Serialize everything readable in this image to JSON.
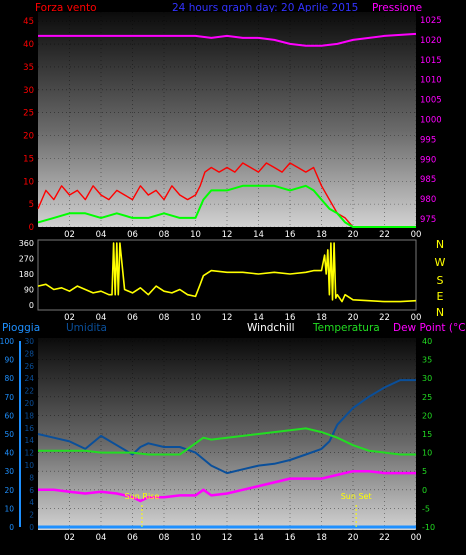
{
  "header": {
    "left_label": "Forza vento",
    "title": "24 hours graph day:  20 Aprile 2015",
    "right_label": "Pressione"
  },
  "legend": {
    "pioggia": "Pioggia",
    "umidita": "Umidita",
    "windchill": "Windchill",
    "temperatura": "Temperatura",
    "dewpoint": "Dew Point (°C)"
  },
  "events": {
    "sunrise": "Sun Rise",
    "sunset": "Sun Set"
  },
  "colors": {
    "wind": "#ff0000",
    "wind_avg": "#00ff00",
    "pressure": "#ff00ff",
    "direction": "#ffff00",
    "humidity": "#0a4f9a",
    "temperature": "#22dd22",
    "dewpoint": "#ff00ff",
    "rain": "#1e90ff",
    "windchill": "#ffffff",
    "title": "#3333ff",
    "axis_left": "#ff0000",
    "axis_right": "#ff00ff",
    "compass": "#ffff00",
    "events": "#ffff00"
  },
  "chart_data": [
    {
      "type": "line",
      "name": "wind_pressure",
      "x_ticks": [
        "02",
        "04",
        "06",
        "08",
        "10",
        "12",
        "14",
        "16",
        "18",
        "20",
        "22",
        "00"
      ],
      "xlim": [
        0,
        24
      ],
      "y_left": {
        "ticks": [
          0,
          5,
          10,
          15,
          20,
          25,
          30,
          35,
          40,
          45
        ],
        "ylim": [
          0,
          47
        ]
      },
      "y_right": {
        "ticks": [
          975,
          980,
          985,
          990,
          995,
          1000,
          1005,
          1010,
          1015,
          1020,
          1025
        ],
        "ylim": [
          973,
          1027
        ]
      },
      "series": [
        {
          "name": "Forza vento",
          "axis": "left",
          "x": [
            0,
            0.5,
            1,
            1.5,
            2,
            2.5,
            3,
            3.5,
            4,
            4.5,
            5,
            5.5,
            6,
            6.5,
            7,
            7.5,
            8,
            8.5,
            9,
            9.5,
            10,
            10.3,
            10.6,
            11,
            11.5,
            12,
            12.5,
            13,
            13.5,
            14,
            14.5,
            15,
            15.5,
            16,
            16.5,
            17,
            17.5,
            18,
            18.5,
            19,
            19.5,
            20,
            20.5,
            21,
            22,
            23,
            24
          ],
          "y": [
            4,
            8,
            6,
            9,
            7,
            8,
            6,
            9,
            7,
            6,
            8,
            7,
            6,
            9,
            7,
            8,
            6,
            9,
            7,
            6,
            7,
            9,
            12,
            13,
            12,
            13,
            12,
            14,
            13,
            12,
            14,
            13,
            12,
            14,
            13,
            12,
            13,
            9,
            6,
            3,
            2,
            0,
            0,
            0,
            0,
            0,
            0
          ]
        },
        {
          "name": "Forza vento media",
          "axis": "left",
          "x": [
            0,
            1,
            2,
            3,
            4,
            5,
            6,
            7,
            8,
            9,
            10,
            10.5,
            11,
            12,
            13,
            14,
            15,
            16,
            17,
            17.5,
            18,
            18.5,
            19,
            19.5,
            20,
            21,
            22,
            23,
            24
          ],
          "y": [
            1,
            2,
            3,
            3,
            2,
            3,
            2,
            2,
            3,
            2,
            2,
            6,
            8,
            8,
            9,
            9,
            9,
            8,
            9,
            8,
            6,
            4,
            3,
            1,
            0,
            0,
            0,
            0,
            0
          ]
        },
        {
          "name": "Pressione",
          "axis": "right",
          "x": [
            0,
            2,
            4,
            6,
            8,
            10,
            11,
            12,
            13,
            14,
            15,
            16,
            17,
            18,
            19,
            20,
            22,
            24
          ],
          "y": [
            1021,
            1021,
            1021,
            1021,
            1021,
            1021,
            1020.5,
            1021,
            1020.5,
            1020.5,
            1020,
            1019,
            1018.5,
            1018.5,
            1019,
            1020,
            1021,
            1021.5
          ]
        }
      ]
    },
    {
      "type": "line",
      "name": "wind_direction",
      "x_ticks": [
        "02",
        "04",
        "06",
        "08",
        "10",
        "12",
        "14",
        "16",
        "18",
        "20",
        "22",
        "00"
      ],
      "xlim": [
        0,
        24
      ],
      "y_left": {
        "ticks": [
          0,
          90,
          180,
          270,
          360
        ],
        "ylim": [
          0,
          360
        ]
      },
      "y_right": {
        "ticks": [
          "N",
          "E",
          "S",
          "W",
          "N"
        ]
      },
      "series": [
        {
          "name": "Direzione vento",
          "x": [
            0,
            0.5,
            1,
            1.5,
            2,
            2.5,
            3,
            3.5,
            4,
            4.5,
            4.7,
            4.8,
            4.9,
            5.0,
            5.1,
            5.2,
            5.5,
            6,
            6.5,
            7,
            7.5,
            8,
            8.5,
            9,
            9.5,
            10,
            10.3,
            10.5,
            11,
            12,
            13,
            14,
            15,
            16,
            17,
            17.5,
            18,
            18.2,
            18.3,
            18.4,
            18.5,
            18.6,
            18.7,
            18.8,
            18.9,
            19,
            19.3,
            19.5,
            20,
            21,
            22,
            23,
            24
          ],
          "y": [
            110,
            120,
            90,
            100,
            80,
            110,
            90,
            70,
            80,
            60,
            60,
            360,
            60,
            360,
            60,
            360,
            90,
            70,
            100,
            60,
            110,
            80,
            70,
            90,
            60,
            50,
            120,
            170,
            200,
            190,
            190,
            180,
            190,
            180,
            190,
            200,
            200,
            290,
            180,
            320,
            60,
            360,
            30,
            360,
            40,
            60,
            20,
            60,
            30,
            25,
            20,
            20,
            25
          ]
        }
      ]
    },
    {
      "type": "line",
      "name": "temp_humidity",
      "x_ticks": [
        "02",
        "04",
        "06",
        "08",
        "10",
        "12",
        "14",
        "16",
        "18",
        "20",
        "22",
        "00"
      ],
      "xlim": [
        0,
        24
      ],
      "y_left_outer": {
        "ticks": [
          0,
          10,
          20,
          30,
          40,
          50,
          60,
          70,
          80,
          90,
          100
        ],
        "ylim": [
          0,
          100
        ]
      },
      "y_left_inner": {
        "ticks": [
          0,
          2,
          4,
          6,
          8,
          10,
          12,
          14,
          16,
          18,
          20,
          22,
          24,
          26,
          28,
          30
        ],
        "ylim": [
          0,
          30
        ]
      },
      "y_right": {
        "ticks": [
          -10,
          -5,
          0,
          5,
          10,
          15,
          20,
          25,
          30,
          35,
          40
        ],
        "ylim": [
          -10,
          40
        ]
      },
      "series": [
        {
          "name": "Umidita",
          "axis": "left_outer",
          "x": [
            0,
            1,
            2,
            3,
            4,
            5,
            6,
            6.5,
            7,
            8,
            9,
            10,
            11,
            12,
            13,
            14,
            15,
            16,
            17,
            18,
            18.5,
            19,
            20,
            21,
            22,
            23,
            24
          ],
          "y": [
            50,
            48,
            46,
            42,
            49,
            44,
            39,
            43,
            45,
            43,
            43,
            40,
            33,
            29,
            31,
            33,
            34,
            36,
            39,
            42,
            46,
            55,
            64,
            70,
            75,
            79,
            79
          ]
        },
        {
          "name": "Temperatura",
          "axis": "right",
          "x": [
            0,
            1,
            2,
            3,
            4,
            5,
            6,
            7,
            8,
            9,
            10,
            10.5,
            11,
            12,
            13,
            14,
            15,
            16,
            17,
            18,
            19,
            20,
            21,
            22,
            23,
            24
          ],
          "y": [
            10.5,
            10.5,
            10.5,
            10.5,
            10,
            10,
            10,
            9.5,
            9.5,
            9.5,
            12.5,
            14,
            13.5,
            14,
            14.5,
            15,
            15.5,
            16,
            16.5,
            15.5,
            14,
            12,
            10.5,
            10,
            9.5,
            9.5
          ]
        },
        {
          "name": "Dew Point",
          "axis": "right",
          "x": [
            0,
            1,
            2,
            3,
            4,
            5,
            6,
            6.5,
            7,
            8,
            9,
            10,
            10.5,
            11,
            12,
            13,
            14,
            15,
            16,
            17,
            18,
            19,
            20,
            21,
            22,
            23,
            24
          ],
          "y": [
            0,
            0,
            -0.5,
            -1,
            -0.5,
            -1,
            -2,
            -3,
            -2,
            -2,
            -1.5,
            -1.5,
            0,
            -1.5,
            -1,
            0,
            1,
            2,
            3,
            3,
            3,
            4,
            5,
            5,
            4.5,
            4.5,
            4.5
          ]
        },
        {
          "name": "Pioggia",
          "axis": "left_outer",
          "x": [
            0,
            24
          ],
          "y": [
            0,
            0
          ]
        }
      ],
      "events": [
        {
          "label": "Sun Rise",
          "x": 6.6
        },
        {
          "label": "Sun Set",
          "x": 20.2
        }
      ]
    }
  ]
}
